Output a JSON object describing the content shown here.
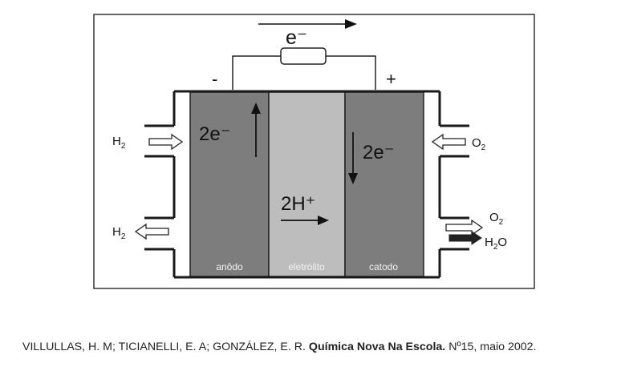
{
  "diagram": {
    "electron_flow_label": "e⁻",
    "negative_terminal": "-",
    "positive_terminal": "+",
    "anode_label": "anôdo",
    "electrolyte_label": "eletrólito",
    "cathode_label": "catodo",
    "anode_electrons": "2e⁻",
    "cathode_electrons": "2e⁻",
    "proton_transfer": "2H⁺",
    "left_inlet": {
      "symbol": "H",
      "subscript": "2"
    },
    "left_outlet": {
      "symbol": "H",
      "subscript": "2"
    },
    "right_inlet": {
      "symbol": "O",
      "subscript": "2"
    },
    "right_outlet_gas": {
      "symbol": "O",
      "subscript": "2"
    },
    "right_outlet_water": {
      "symbol": "H",
      "subscript": "2",
      "suffix": "O"
    }
  },
  "citation": {
    "authors": "VILLULLAS, H. M; TICIANELLI, E. A; GONZÁLEZ, E. R.",
    "journal": "Química Nova Na Escola.",
    "details": "Nº15, maio 2002."
  }
}
